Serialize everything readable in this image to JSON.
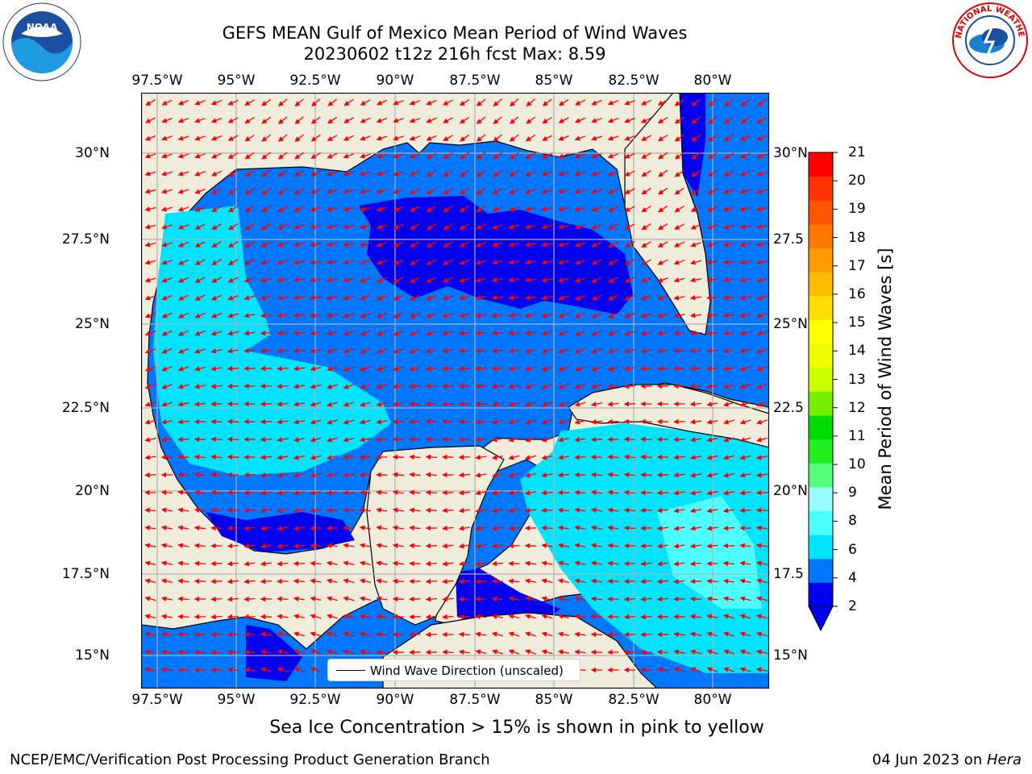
{
  "title_line1": "GEFS MEAN Gulf of Mexico Mean Period of Wind Waves",
  "title_line2": "20230602 t12z 216h fcst   Max: 8.59",
  "map": {
    "lon_ticks": [
      "97.5°W",
      "95°W",
      "92.5°W",
      "90°W",
      "87.5°W",
      "85°W",
      "82.5°W",
      "80°W"
    ],
    "lat_ticks_left": [
      "30°N",
      "27.5°N",
      "25°N",
      "22.5°N",
      "20°N",
      "17.5°N",
      "15°N"
    ],
    "lat_ticks_right": [
      "30°N",
      "27.5",
      "25°N",
      "22.5",
      "20°N",
      "17.5",
      "15°N"
    ],
    "legend_label": "Wind Wave Direction (unscaled)",
    "land_color": "#efecdc",
    "arrow_color": "#ff0000"
  },
  "colorbar": {
    "label": "Mean Period of Wind Waves [s]",
    "ticks": [
      "21",
      "20",
      "19",
      "18",
      "17",
      "16",
      "15",
      "14",
      "13",
      "12",
      "11",
      "10",
      "9",
      "8",
      "6",
      "4",
      "2"
    ],
    "colors": [
      "#0000ee",
      "#0077ff",
      "#00e5ff",
      "#4dffff",
      "#99ffff",
      "#55ff77",
      "#22ee22",
      "#00dd00",
      "#77ee00",
      "#ccff00",
      "#eeff00",
      "#ffff00",
      "#ffdd00",
      "#ffbb00",
      "#ff9900",
      "#ff7700",
      "#ff5500",
      "#ff3300",
      "#ff0000"
    ]
  },
  "note": "Sea Ice Concentration > 15% is shown in pink to yellow",
  "footer_left": "NCEP/EMC/Verification Post Processing Product Generation Branch",
  "footer_right_date": "04 Jun 2023 on ",
  "footer_right_machine": "Hera",
  "logos": {
    "noaa_text": "NOAA",
    "nws_text": "NATIONAL WEATHER SERVICE"
  }
}
